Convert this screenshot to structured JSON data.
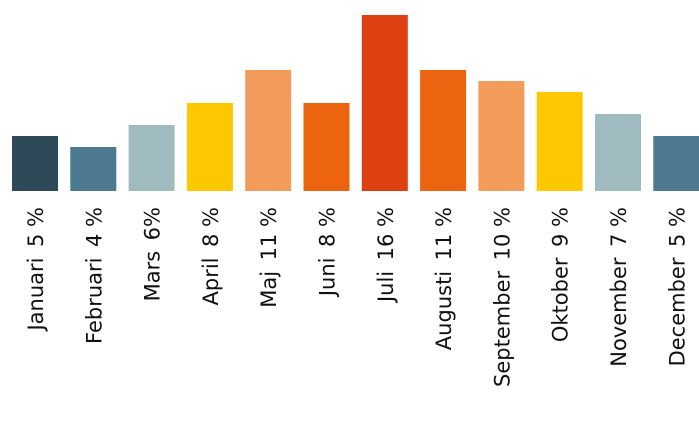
{
  "chart_data": {
    "type": "bar",
    "title": "",
    "xlabel": "",
    "ylabel": "",
    "ylim": [
      0,
      16
    ],
    "grid": false,
    "legend": "none",
    "categories": [
      "Januari",
      "Februari",
      "Mars",
      "April",
      "Maj",
      "Juni",
      "Juli",
      "Augusti",
      "September",
      "Oktober",
      "November",
      "December"
    ],
    "values": [
      5,
      4,
      6,
      8,
      11,
      8,
      16,
      11,
      10,
      9,
      7,
      5
    ],
    "value_labels": [
      "5 %",
      "4 %",
      "6%",
      "8 %",
      "11 %",
      "8 %",
      "16 %",
      "11 %",
      "10 %",
      "9 %",
      "7 %",
      "5 %"
    ],
    "colors": [
      "#2e4a58",
      "#4d7a90",
      "#9fbbc0",
      "#fdc800",
      "#f39b5a",
      "#ed6410",
      "#de4012",
      "#ed6410",
      "#f39b5a",
      "#fdc800",
      "#9fbbc0",
      "#4d7a90"
    ]
  }
}
